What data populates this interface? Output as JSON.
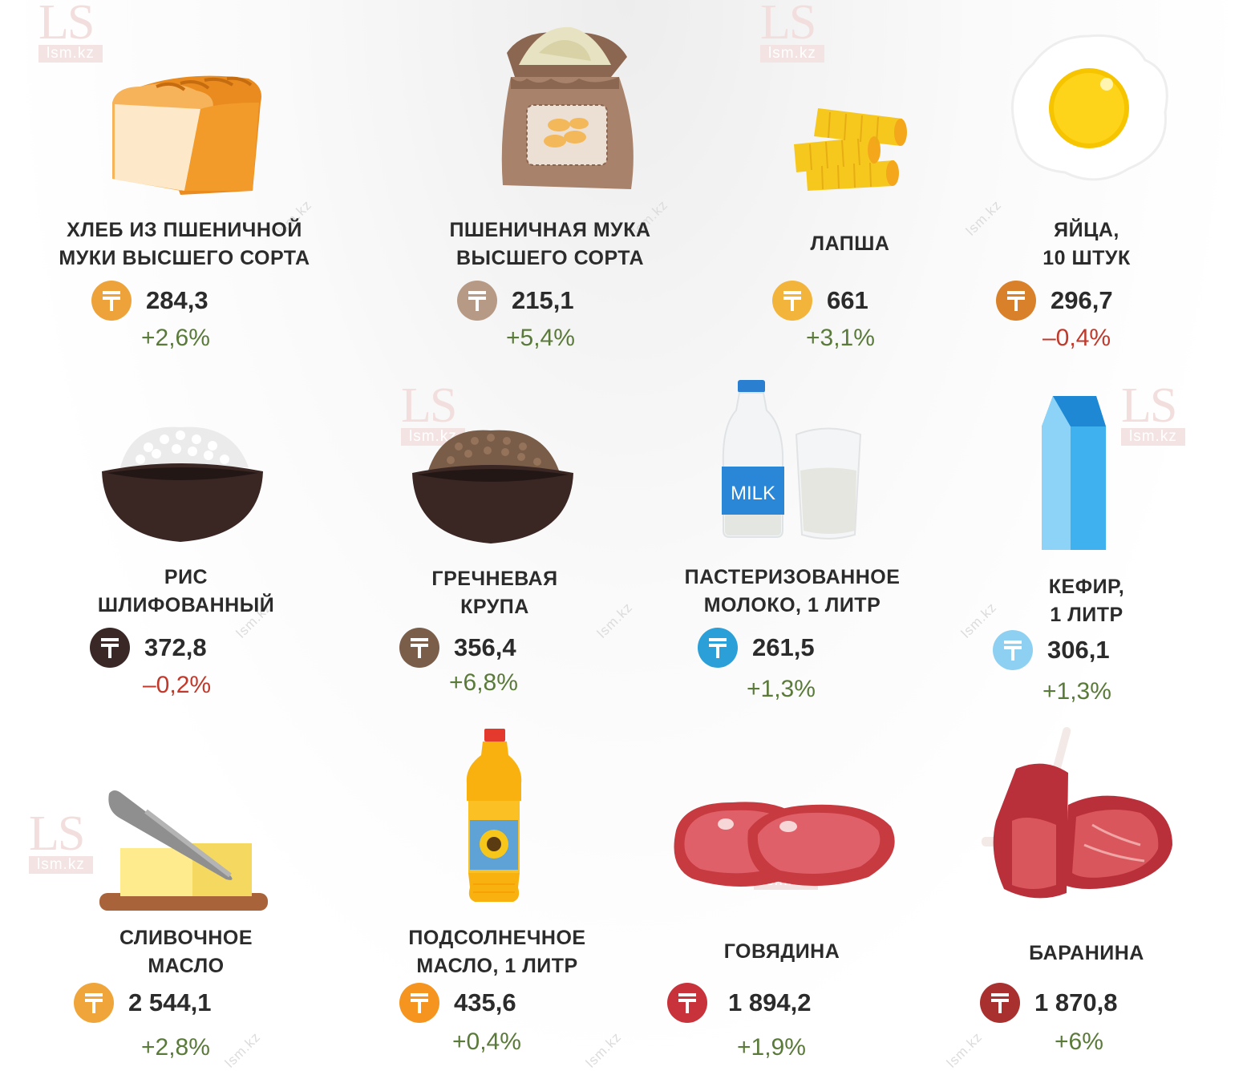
{
  "watermark": {
    "logo": "LS",
    "site": "lsm.kz"
  },
  "colors": {
    "positive": "#5a7a3a",
    "negative": "#c0392b"
  },
  "currency_icon": "tenge-sign-icon",
  "products": [
    {
      "id": "bread",
      "icon": "bread-icon",
      "name": "ХЛЕБ ИЗ ПШЕНИЧНОЙ\nМУКИ ВЫСШЕГО СОРТА",
      "price": "284,3",
      "change": "+2,6%",
      "trend": "up",
      "coin_color": "#eea33a"
    },
    {
      "id": "flour",
      "icon": "flour-sack-icon",
      "name": "ПШЕНИЧНАЯ МУКА\nВЫСШЕГО СОРТА",
      "price": "215,1",
      "change": "+5,4%",
      "trend": "up",
      "coin_color": "#b79a85"
    },
    {
      "id": "noodles",
      "icon": "pasta-icon",
      "name": "ЛАПША",
      "price": "661",
      "change": "+3,1%",
      "trend": "up",
      "coin_color": "#f2b43a"
    },
    {
      "id": "eggs",
      "icon": "fried-egg-icon",
      "name": "ЯЙЦА,\n10 ШТУК",
      "price": "296,7",
      "change": "–0,4%",
      "trend": "down",
      "coin_color": "#d9802a"
    },
    {
      "id": "rice",
      "icon": "rice-bowl-icon",
      "name": "РИС\nШЛИФОВАННЫЙ",
      "price": "372,8",
      "change": "–0,2%",
      "trend": "down",
      "coin_color": "#3a2826"
    },
    {
      "id": "buckwheat",
      "icon": "buckwheat-bowl-icon",
      "name": "ГРЕЧНЕВАЯ\nКРУПА",
      "price": "356,4",
      "change": "+6,8%",
      "trend": "up",
      "coin_color": "#7b5e4a"
    },
    {
      "id": "milk",
      "icon": "milk-bottle-icon",
      "name": "ПАСТЕРИЗОВАННОЕ\nМОЛОКО, 1 ЛИТР",
      "price": "261,5",
      "change": "+1,3%",
      "trend": "up",
      "coin_color": "#2a9fd8",
      "label_text": "MILK"
    },
    {
      "id": "kefir",
      "icon": "milk-carton-icon",
      "name": "КЕФИР,\n1 ЛИТР",
      "price": "306,1",
      "change": "+1,3%",
      "trend": "up",
      "coin_color": "#8ed0f2"
    },
    {
      "id": "butter",
      "icon": "butter-icon",
      "name": "СЛИВОЧНОЕ\nМАСЛО",
      "price": "2 544,1",
      "change": "+2,8%",
      "trend": "up",
      "coin_color": "#f0a53a"
    },
    {
      "id": "sunflower_oil",
      "icon": "oil-bottle-icon",
      "name": "ПОДСОЛНЕЧНОЕ\nМАСЛО, 1 ЛИТР",
      "price": "435,6",
      "change": "+0,4%",
      "trend": "up",
      "coin_color": "#f5941e"
    },
    {
      "id": "beef",
      "icon": "beef-steak-icon",
      "name": "ГОВЯДИНА",
      "price": "1 894,2",
      "change": "+1,9%",
      "trend": "up",
      "coin_color": "#c8323a"
    },
    {
      "id": "mutton",
      "icon": "lamb-ribs-icon",
      "name": "БАРАНИНА",
      "price": "1 870,8",
      "change": "+6%",
      "trend": "up",
      "coin_color": "#a8302e"
    }
  ]
}
